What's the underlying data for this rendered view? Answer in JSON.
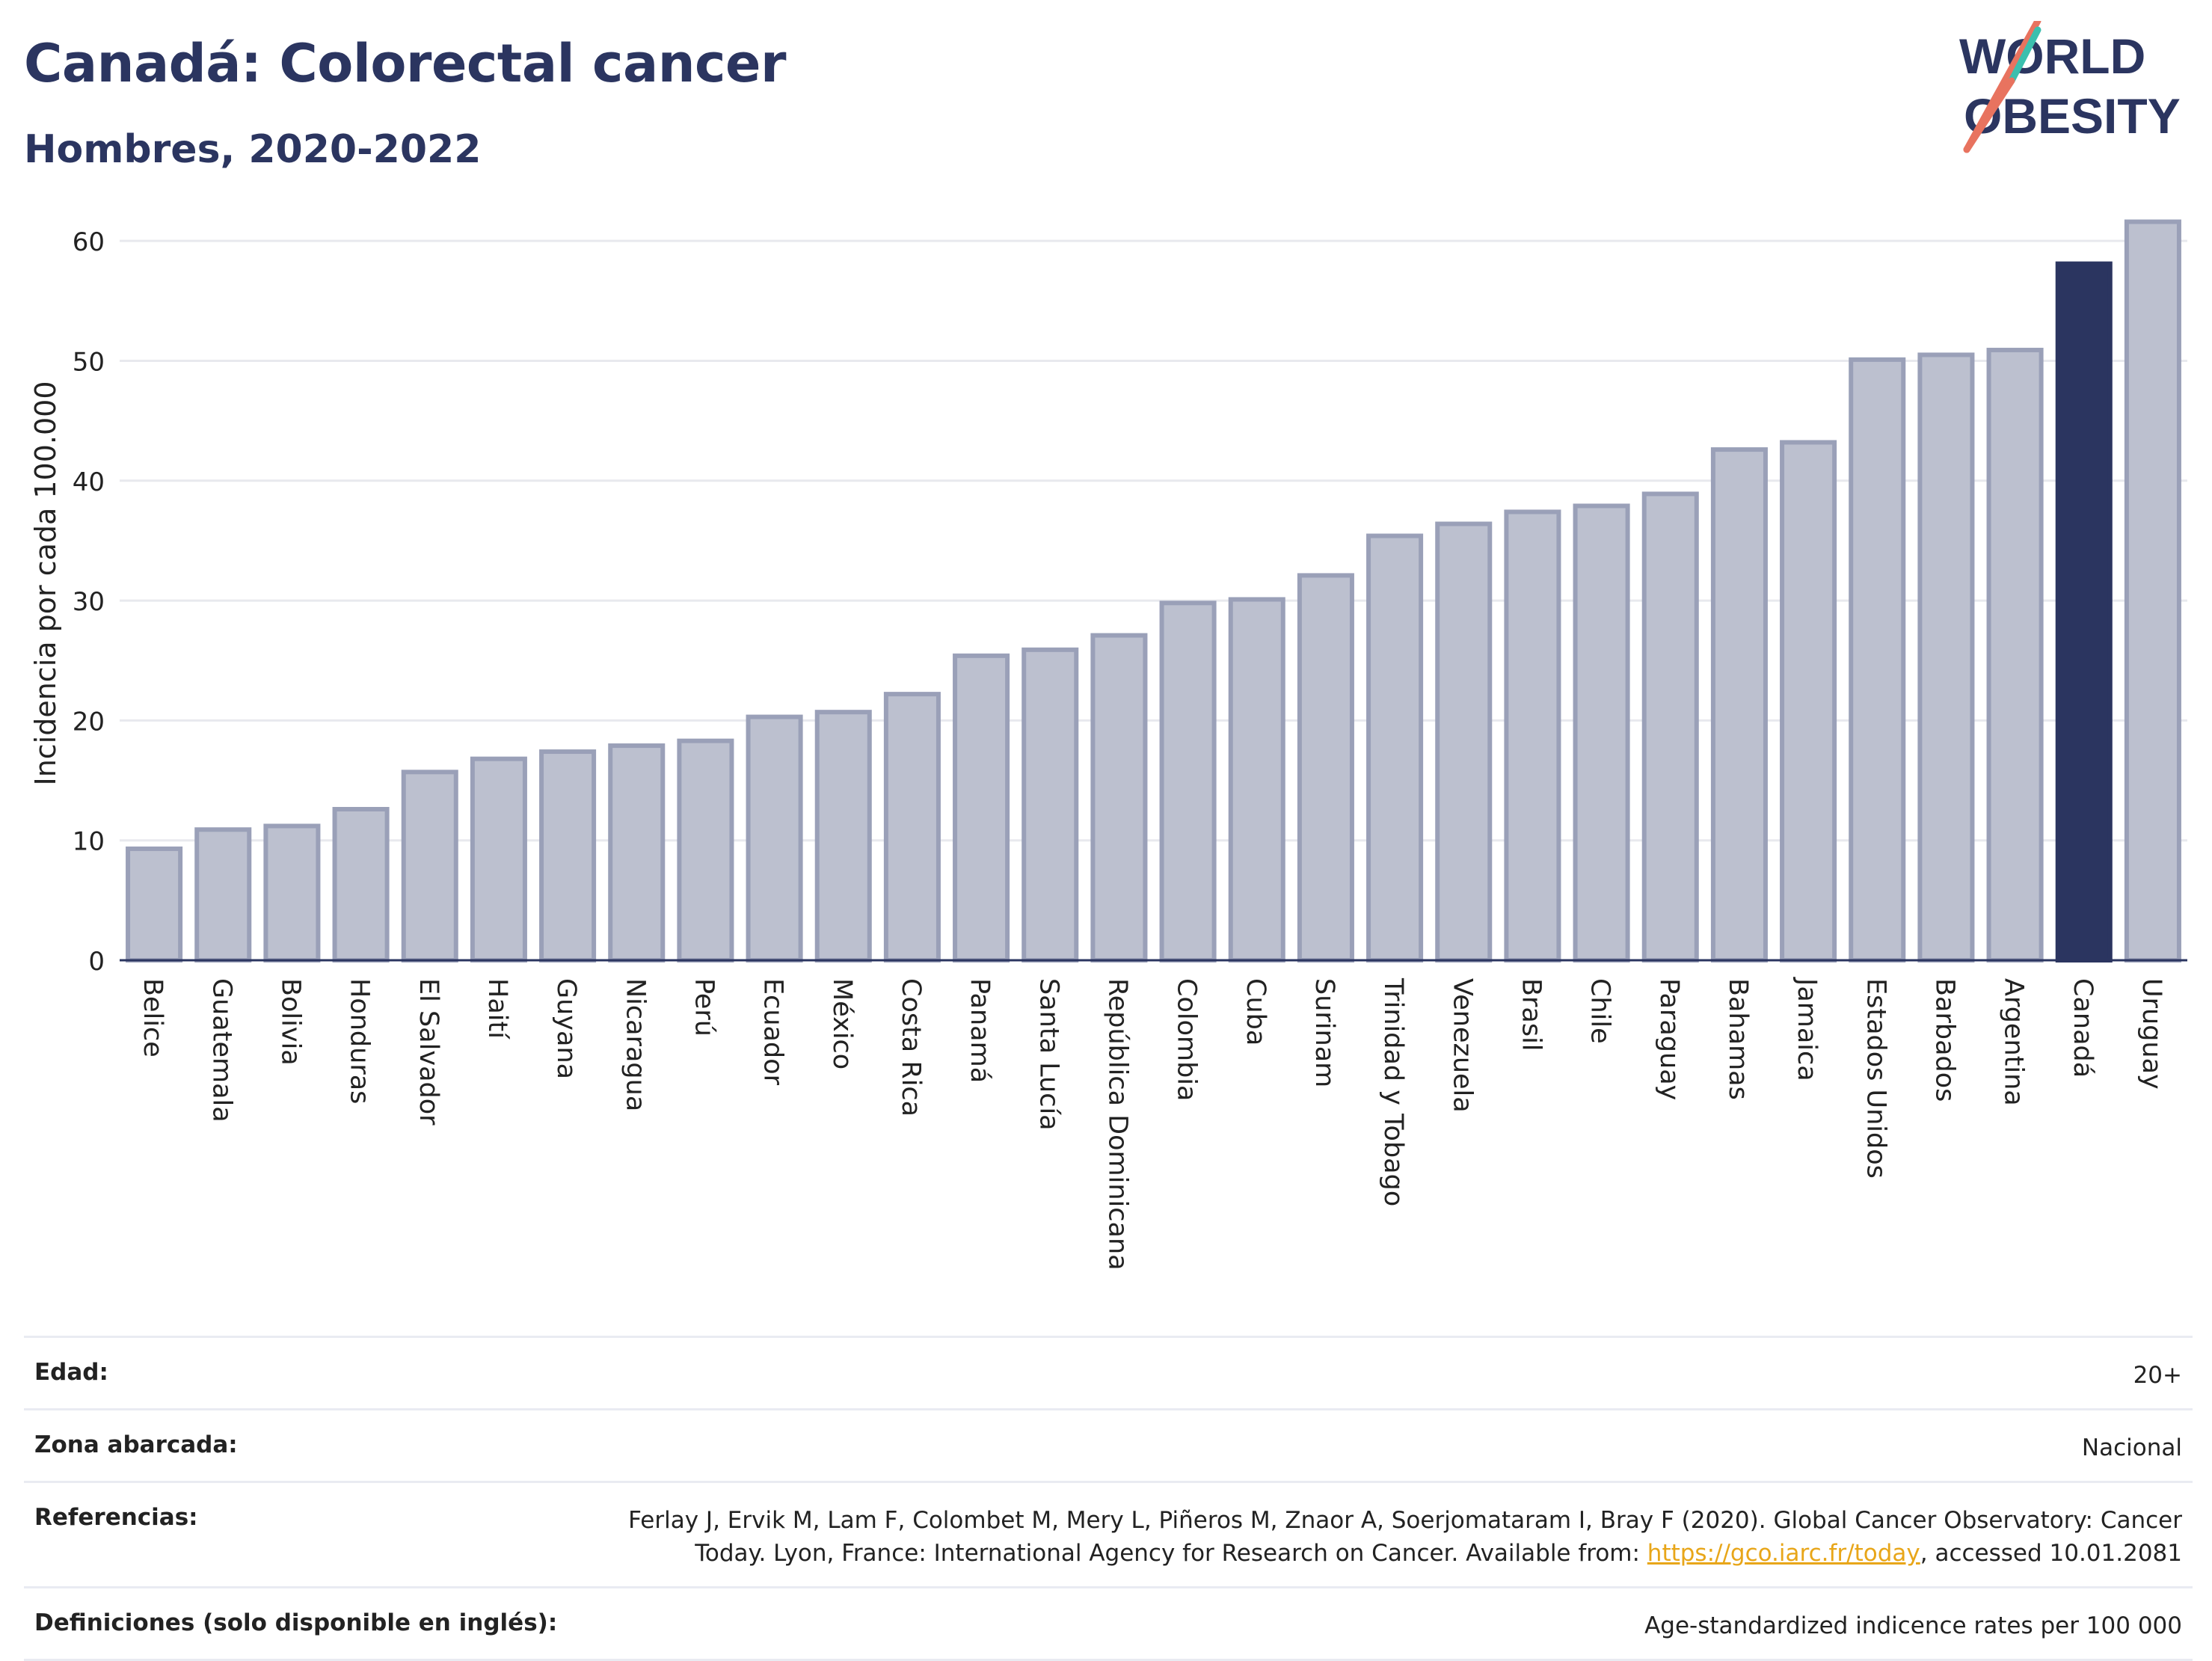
{
  "header": {
    "title": "Canadá: Colorectal cancer",
    "subtitle": "Hombres, 2020-2022"
  },
  "logo": {
    "line1": "WORLD",
    "line2": "OBESITY"
  },
  "colors": {
    "bar": "#bcc0cf",
    "bar_border": "#9aa0b8",
    "highlight": "#2b3560",
    "grid": "#e8e9ee",
    "text": "#2b3560"
  },
  "chart_data": {
    "type": "bar",
    "ylabel": "Incidencia por cada 100.000",
    "ylim": [
      0,
      65
    ],
    "yticks": [
      0,
      10,
      20,
      30,
      40,
      50,
      60
    ],
    "highlight": "Canadá",
    "categories": [
      "Belice",
      "Guatemala",
      "Bolivia",
      "Honduras",
      "El Salvador",
      "Haití",
      "Guyana",
      "Nicaragua",
      "Perú",
      "Ecuador",
      "México",
      "Costa Rica",
      "Panamá",
      "Santa Lucía",
      "República Dominicana",
      "Colombia",
      "Cuba",
      "Surinam",
      "Trinidad y Tobago",
      "Venezuela",
      "Brasil",
      "Chile",
      "Paraguay",
      "Bahamas",
      "Jamaica",
      "Estados Unidos",
      "Barbados",
      "Argentina",
      "Canadá",
      "Uruguay"
    ],
    "values": [
      9.3,
      10.9,
      11.2,
      12.6,
      15.7,
      16.8,
      17.4,
      17.9,
      18.3,
      20.3,
      20.7,
      22.2,
      25.4,
      25.9,
      27.1,
      29.8,
      30.1,
      32.1,
      35.4,
      36.4,
      37.4,
      37.9,
      38.9,
      42.6,
      43.2,
      50.1,
      50.5,
      50.9,
      58.1,
      61.6
    ],
    "grid": true,
    "legend": "none"
  },
  "meta": {
    "rows": [
      {
        "label": "Edad:",
        "value": "20+"
      },
      {
        "label": "Zona abarcada:",
        "value": "Nacional"
      },
      {
        "label": "Referencias:",
        "value_before": "Ferlay J, Ervik M, Lam F, Colombet M, Mery L, Piñeros M, Znaor A, Soerjomataram I, Bray F (2020). Global Cancer Observatory: Cancer Today. Lyon, France: International Agency for Research on Cancer. Available from: ",
        "link": "https://gco.iarc.fr/today",
        "value_after": ", accessed 10.01.2081"
      },
      {
        "label": "Definiciones (solo disponible en inglés):",
        "value": "Age-standardized indicence rates per 100 000"
      }
    ]
  }
}
